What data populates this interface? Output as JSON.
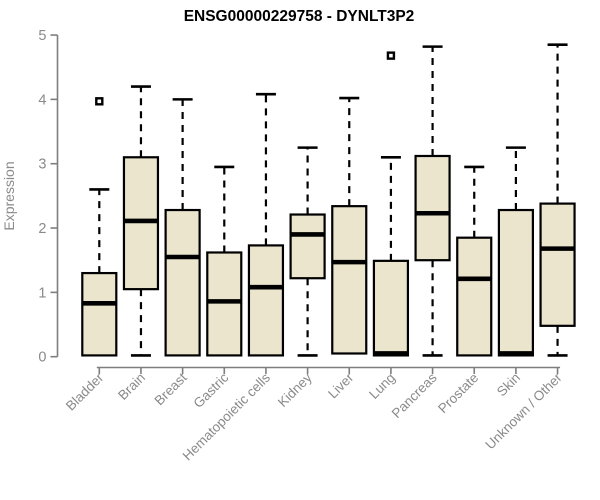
{
  "chart_data": {
    "type": "boxplot",
    "title": "ENSG00000229758 - DYNLT3P2",
    "ylabel": "Expression",
    "xlabel": "",
    "ylim": [
      0,
      5
    ],
    "yticks": [
      0,
      1,
      2,
      3,
      4,
      5
    ],
    "grid": false,
    "legend": "none",
    "categories": [
      "Bladder",
      "Brain",
      "Breast",
      "Gastric",
      "Hematopoietic cells",
      "Kidney",
      "Liver",
      "Lung",
      "Pancreas",
      "Prostate",
      "Skin",
      "Unknown / Other"
    ],
    "series": [
      {
        "category": "Bladder",
        "low": 0.02,
        "q1": 0.02,
        "median": 0.83,
        "q3": 1.3,
        "high": 2.6,
        "outliers": [
          3.97
        ]
      },
      {
        "category": "Brain",
        "low": 0.02,
        "q1": 1.05,
        "median": 2.11,
        "q3": 3.1,
        "high": 4.2,
        "outliers": []
      },
      {
        "category": "Breast",
        "low": 0.02,
        "q1": 0.02,
        "median": 1.55,
        "q3": 2.28,
        "high": 4.0,
        "outliers": []
      },
      {
        "category": "Gastric",
        "low": 0.02,
        "q1": 0.02,
        "median": 0.86,
        "q3": 1.62,
        "high": 2.95,
        "outliers": []
      },
      {
        "category": "Hematopoietic cells",
        "low": 0.02,
        "q1": 0.02,
        "median": 1.08,
        "q3": 1.73,
        "high": 4.08,
        "outliers": []
      },
      {
        "category": "Kidney",
        "low": 0.02,
        "q1": 1.22,
        "median": 1.9,
        "q3": 2.21,
        "high": 3.25,
        "outliers": []
      },
      {
        "category": "Liver",
        "low": 0.05,
        "q1": 0.05,
        "median": 1.47,
        "q3": 2.34,
        "high": 4.02,
        "outliers": []
      },
      {
        "category": "Lung",
        "low": 0.02,
        "q1": 0.02,
        "median": 0.05,
        "q3": 1.49,
        "high": 3.1,
        "outliers": [
          4.68
        ]
      },
      {
        "category": "Pancreas",
        "low": 0.02,
        "q1": 1.5,
        "median": 2.23,
        "q3": 3.12,
        "high": 4.82,
        "outliers": []
      },
      {
        "category": "Prostate",
        "low": 0.02,
        "q1": 0.02,
        "median": 1.21,
        "q3": 1.85,
        "high": 2.95,
        "outliers": []
      },
      {
        "category": "Skin",
        "low": 0.02,
        "q1": 0.02,
        "median": 0.05,
        "q3": 2.28,
        "high": 3.25,
        "outliers": []
      },
      {
        "category": "Unknown / Other",
        "low": 0.02,
        "q1": 0.48,
        "median": 1.68,
        "q3": 2.38,
        "high": 4.85,
        "outliers": []
      }
    ],
    "colors": {
      "box_fill": "#ebe5cd",
      "box_stroke": "#000000",
      "median_stroke": "#000000",
      "whisker_stroke": "#000000",
      "axis": "#7e7e7e",
      "tick_text": "#8a8a8a",
      "title_text": "#000000",
      "background": "#ffffff"
    }
  }
}
